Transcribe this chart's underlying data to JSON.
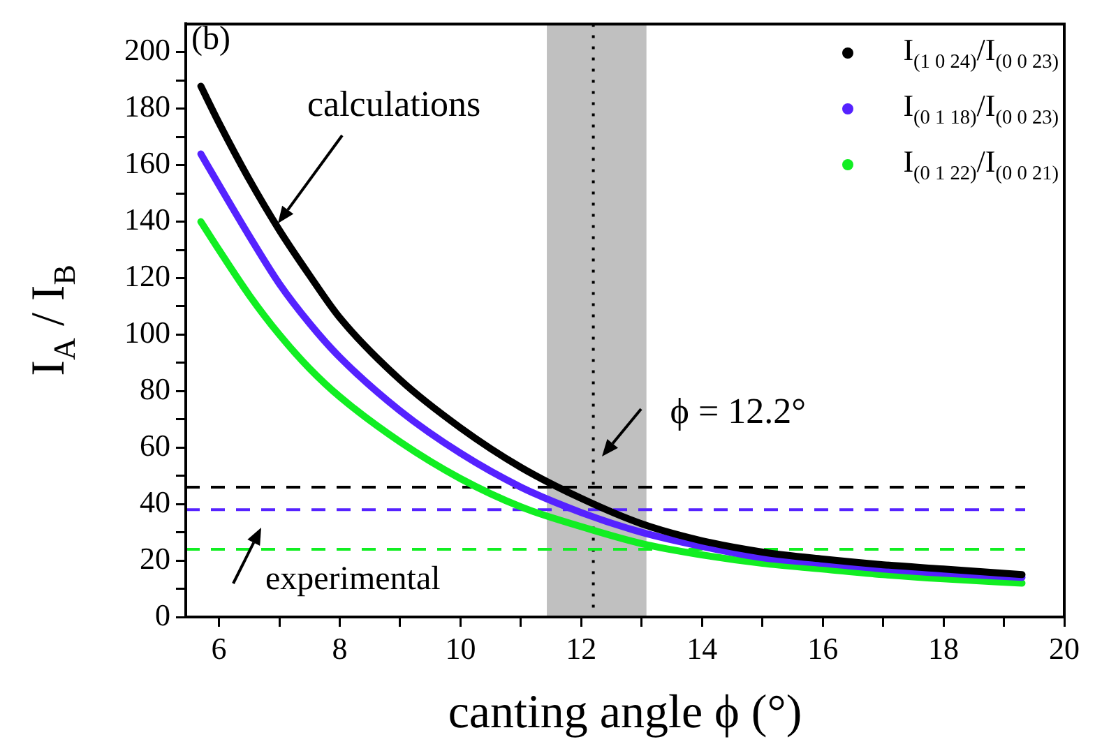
{
  "chart_data": {
    "type": "line",
    "xlabel": "canting angle ϕ (°)",
    "ylabel": "I$_{A}$ / I$_{B}$",
    "xlim": [
      5.45,
      20
    ],
    "xticks": [
      6,
      8,
      10,
      12,
      14,
      16,
      18,
      20
    ],
    "ylim": [
      0,
      210
    ],
    "yticks": [
      0,
      20,
      40,
      60,
      80,
      100,
      120,
      140,
      160,
      180,
      200
    ],
    "grid": false,
    "legend": "top right",
    "marker": "none",
    "line_style": "solid",
    "series": [
      {
        "name": "I$_{(1 0 24)}$/I$_{(0 0 23)}$",
        "color": "#000000",
        "x": [
          5.7,
          6,
          6.5,
          7,
          7.5,
          8,
          9,
          10,
          11,
          12,
          13,
          14,
          15,
          16,
          17,
          18,
          19.3
        ],
        "values": [
          188,
          175,
          155,
          137,
          121,
          106,
          84,
          67,
          53,
          42,
          33,
          27,
          23,
          20.5,
          18.5,
          17,
          15
        ]
      },
      {
        "name": "I$_{(0 1 18)}$/I$_{(0 0 23)}$",
        "color": "#5522ff",
        "x": [
          5.7,
          6,
          6.5,
          7,
          7.5,
          8,
          9,
          10,
          11,
          12,
          13,
          14,
          15,
          16,
          17,
          18,
          19.3
        ],
        "values": [
          164,
          153,
          135,
          118,
          104,
          92,
          73,
          58,
          46,
          37,
          30,
          25,
          21,
          19,
          17,
          15.5,
          14
        ]
      },
      {
        "name": "I$_{(0 1 22)}$/I$_{(0 0 21)}$",
        "color": "#11ee22",
        "x": [
          5.7,
          6,
          6.5,
          7,
          7.5,
          8,
          9,
          10,
          11,
          12,
          13,
          14,
          15,
          16,
          17,
          18,
          19.3
        ],
        "values": [
          140,
          130,
          114,
          100,
          88,
          78,
          62,
          49,
          39,
          32,
          26,
          22,
          19,
          17,
          15,
          13.5,
          12
        ]
      }
    ],
    "ref_lines": [
      {
        "axis": "x",
        "value": 12.2,
        "label": "ϕ = 12.2°",
        "color": "#000000",
        "line_style": "dotted"
      },
      {
        "axis": "y",
        "value": 46,
        "color": "#000000",
        "line_style": "dashed"
      },
      {
        "axis": "y",
        "value": 38,
        "color": "#5522ff",
        "line_style": "dashed"
      },
      {
        "axis": "y",
        "value": 24,
        "color": "#11ee22",
        "line_style": "dashed"
      }
    ],
    "bands": [
      {
        "axis": "x",
        "from": 11.43,
        "to": 13.08,
        "color": "#c0c0c0"
      }
    ],
    "annotations": [
      "(b)",
      "calculations",
      "experimental"
    ]
  }
}
